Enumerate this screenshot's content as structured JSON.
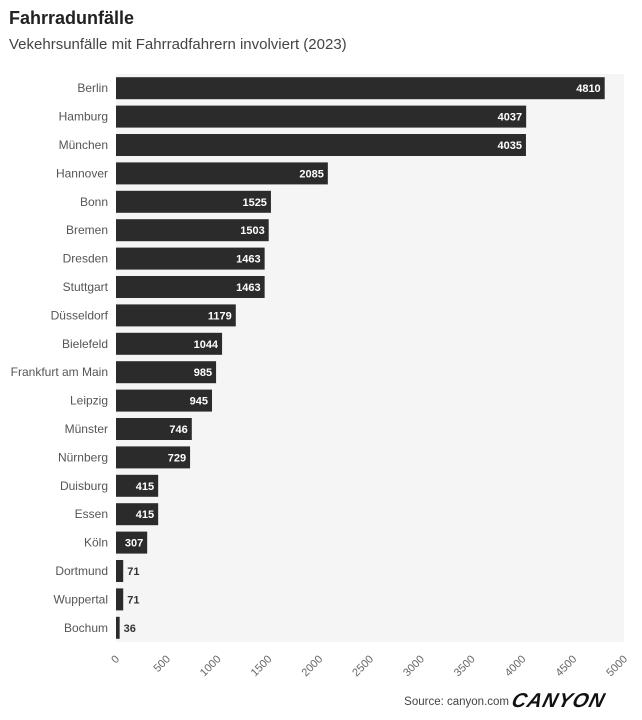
{
  "chart_data": {
    "type": "bar",
    "orientation": "horizontal",
    "title": "Fahrradunfälle",
    "subtitle": "Vekehrsunfälle mit Fahrradfahrern involviert (2023)",
    "categories": [
      "Berlin",
      "Hamburg",
      "München",
      "Hannover",
      "Bonn",
      "Bremen",
      "Dresden",
      "Stuttgart",
      "Düsseldorf",
      "Bielefeld",
      "Frankfurt am Main",
      "Leipzig",
      "Münster",
      "Nürnberg",
      "Duisburg",
      "Essen",
      "Köln",
      "Dortmund",
      "Wuppertal",
      "Bochum"
    ],
    "values": [
      4810,
      4037,
      4035,
      2085,
      1525,
      1503,
      1463,
      1463,
      1179,
      1044,
      985,
      945,
      746,
      729,
      415,
      415,
      307,
      71,
      71,
      36
    ],
    "xlim": [
      0,
      5000
    ],
    "xticks": [
      0,
      500,
      1000,
      1500,
      2000,
      2500,
      3000,
      3500,
      4000,
      4500,
      5000
    ],
    "xlabel": "",
    "ylabel": "",
    "grid": false,
    "colors": {
      "bar": "#2b2b2b",
      "plot_bg": "#f5f5f5",
      "label_inside": "#ffffff",
      "label_outside": "#333333"
    }
  },
  "footer": {
    "source": "Source: canyon.com",
    "logo_text": "CANYON"
  }
}
